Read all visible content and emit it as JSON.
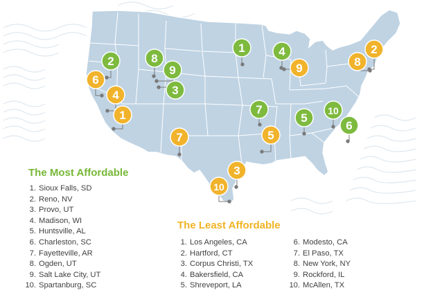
{
  "colors": {
    "most_affordable": "#7dba3e",
    "least_affordable": "#f1b32b",
    "map_fill": "#bfd3e3",
    "map_stroke": "#ffffff",
    "heading_least": "#f0b323",
    "heading_most": "#76b837",
    "list_text": "#404040"
  },
  "most_affordable": {
    "heading": "The Most Affordable",
    "items": [
      {
        "num": "1.",
        "city": "Sioux Falls, SD"
      },
      {
        "num": "2.",
        "city": "Reno, NV"
      },
      {
        "num": "3.",
        "city": "Provo, UT"
      },
      {
        "num": "4.",
        "city": "Madison, WI"
      },
      {
        "num": "5.",
        "city": "Huntsville, AL"
      },
      {
        "num": "6.",
        "city": "Charleston, SC"
      },
      {
        "num": "7.",
        "city": "Fayetteville, AR"
      },
      {
        "num": "8.",
        "city": "Ogden, UT"
      },
      {
        "num": "9.",
        "city": "Salt Lake City, UT"
      },
      {
        "num": "10.",
        "city": "Spartanburg, SC"
      }
    ]
  },
  "least_affordable": {
    "heading": "The Least Affordable",
    "items": [
      {
        "num": "1.",
        "city": "Los Angeles, CA"
      },
      {
        "num": "2.",
        "city": "Hartford, CT"
      },
      {
        "num": "3.",
        "city": "Corpus Christi, TX"
      },
      {
        "num": "4.",
        "city": "Bakersfield, CA"
      },
      {
        "num": "5.",
        "city": "Shreveport, LA"
      },
      {
        "num": "6.",
        "city": "Modesto, CA"
      },
      {
        "num": "7.",
        "city": "El Paso, TX"
      },
      {
        "num": "8.",
        "city": "New York, NY"
      },
      {
        "num": "9.",
        "city": "Rockford, IL"
      },
      {
        "num": "10.",
        "city": "McAllen, TX"
      }
    ]
  },
  "map_pins": [
    {
      "label": "1",
      "group": "most"
    },
    {
      "label": "2",
      "group": "most"
    },
    {
      "label": "3",
      "group": "most"
    },
    {
      "label": "4",
      "group": "most"
    },
    {
      "label": "5",
      "group": "most"
    },
    {
      "label": "6",
      "group": "most"
    },
    {
      "label": "7",
      "group": "most"
    },
    {
      "label": "8",
      "group": "most"
    },
    {
      "label": "9",
      "group": "most"
    },
    {
      "label": "10",
      "group": "most"
    },
    {
      "label": "1",
      "group": "least"
    },
    {
      "label": "2",
      "group": "least"
    },
    {
      "label": "3",
      "group": "least"
    },
    {
      "label": "4",
      "group": "least"
    },
    {
      "label": "5",
      "group": "least"
    },
    {
      "label": "6",
      "group": "least"
    },
    {
      "label": "7",
      "group": "least"
    },
    {
      "label": "8",
      "group": "least"
    },
    {
      "label": "9",
      "group": "least"
    },
    {
      "label": "10",
      "group": "least"
    }
  ]
}
